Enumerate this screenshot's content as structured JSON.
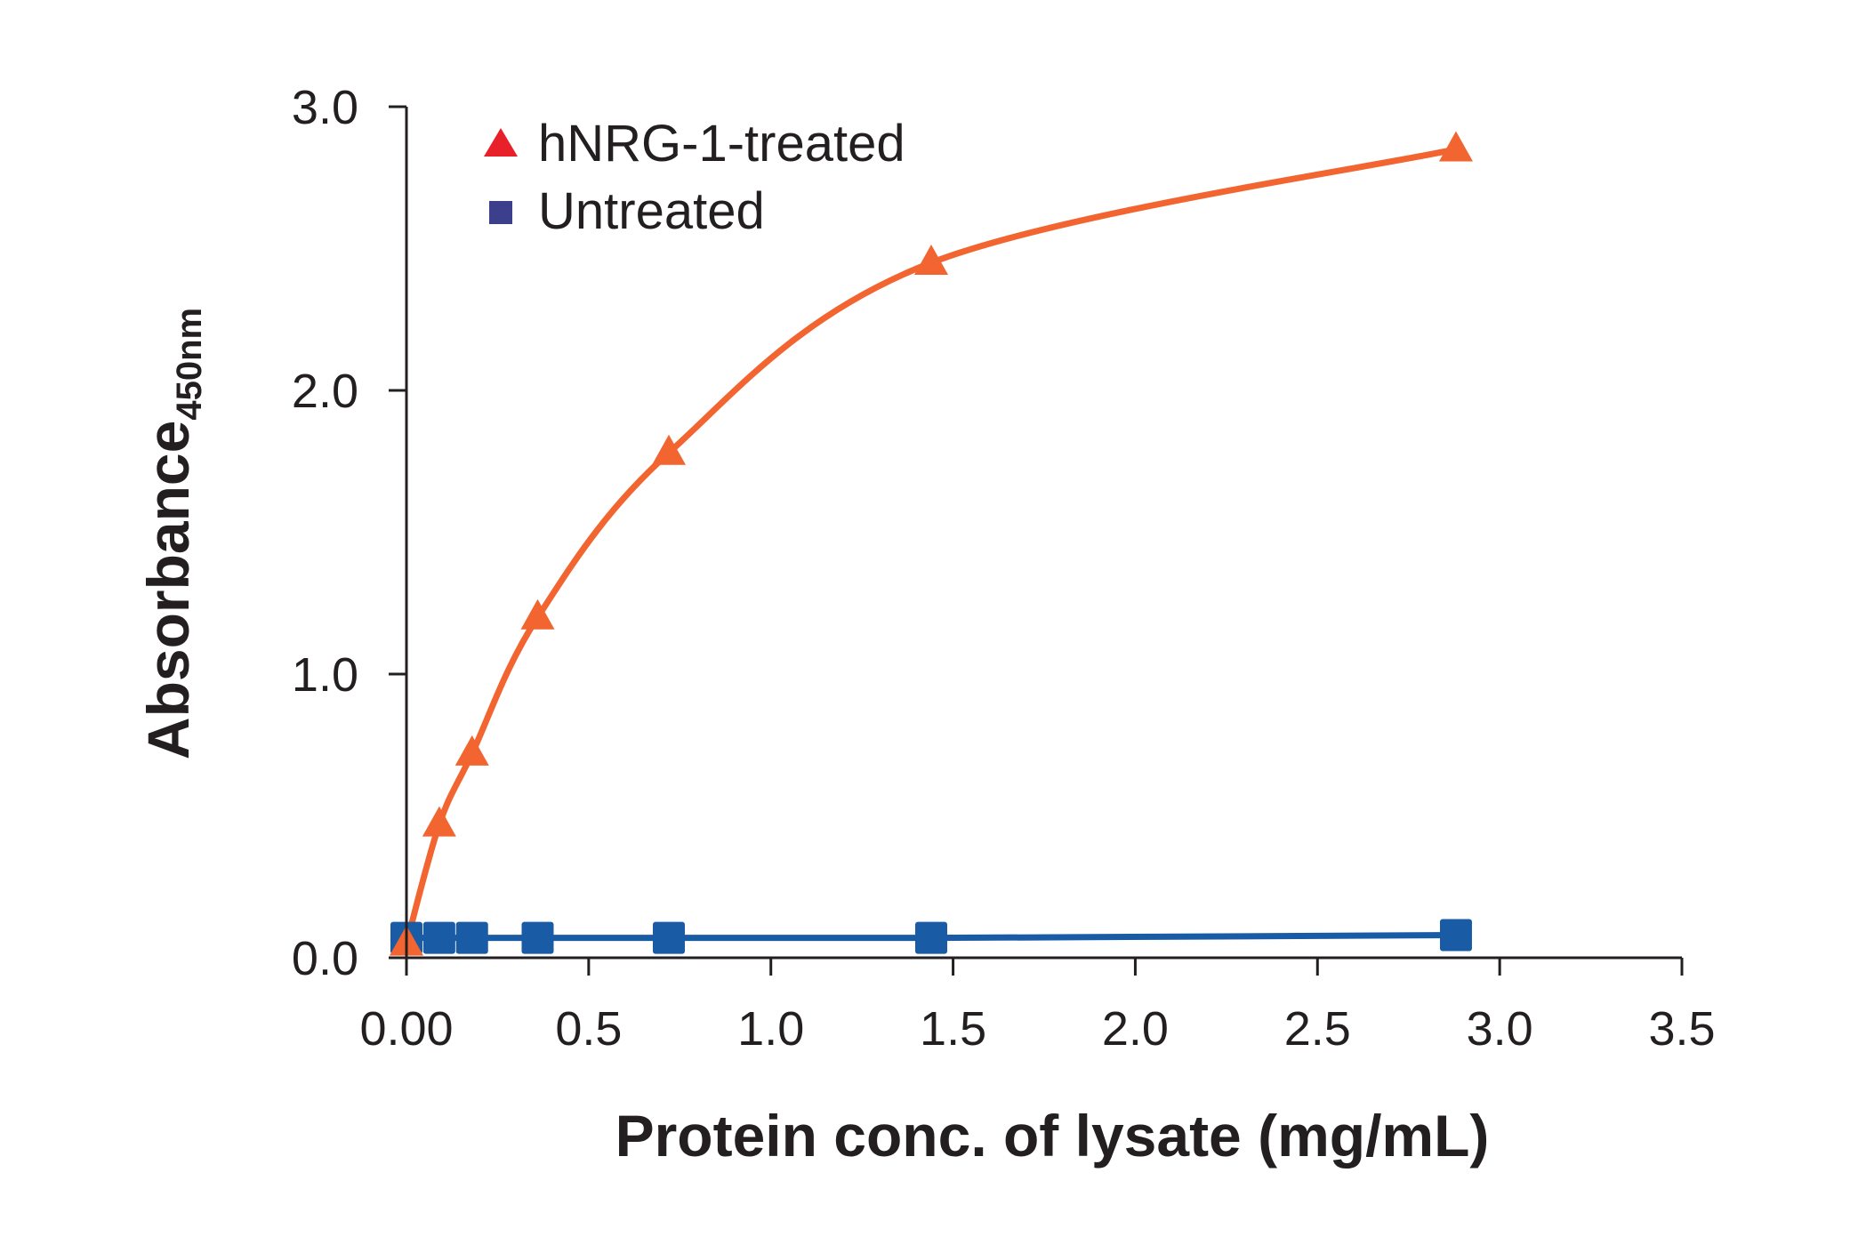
{
  "chart_data": {
    "type": "line",
    "title": "",
    "xlabel": "Protein conc. of lysate (mg/mL)",
    "ylabel": "Absorbance",
    "ylabel_subscript": "450nm",
    "xlim": [
      0,
      3.5
    ],
    "ylim": [
      0,
      3.0
    ],
    "x_ticks": [
      0,
      0.5,
      1.0,
      1.5,
      2.0,
      2.5,
      3.0,
      3.5
    ],
    "x_tick_labels": [
      "0.00",
      "0.5",
      "1.0",
      "1.5",
      "2.0",
      "2.5",
      "3.0",
      "3.5"
    ],
    "y_ticks": [
      0,
      1.0,
      2.0,
      3.0
    ],
    "y_tick_labels": [
      "0.0",
      "1.0",
      "2.0",
      "3.0"
    ],
    "grid": false,
    "legend_position": "top-left",
    "series": [
      {
        "name": "hNRG-1-treated",
        "marker": "triangle",
        "color": "#f26531",
        "legend_color": "#e8202a",
        "x": [
          0,
          0.09,
          0.18,
          0.36,
          0.72,
          1.44,
          2.88
        ],
        "y": [
          0.05,
          0.47,
          0.72,
          1.2,
          1.78,
          2.45,
          2.85
        ]
      },
      {
        "name": "Untreated",
        "marker": "square",
        "color": "#1a5ba6",
        "legend_color": "#3b3f8c",
        "x": [
          0,
          0.09,
          0.18,
          0.36,
          0.72,
          1.44,
          2.88
        ],
        "y": [
          0.07,
          0.07,
          0.07,
          0.07,
          0.07,
          0.07,
          0.08
        ]
      }
    ]
  }
}
